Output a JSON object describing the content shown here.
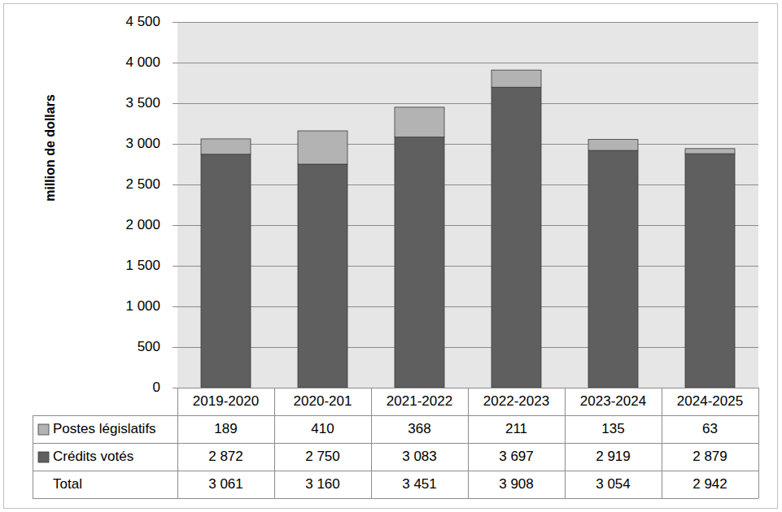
{
  "chart_data": {
    "type": "bar",
    "stacked": true,
    "grid": true,
    "y_label": "million de dollars",
    "categories": [
      "2019-2020",
      "2020-201",
      "2021-2022",
      "2022-2023",
      "2023-2024",
      "2024-2025"
    ],
    "series": [
      {
        "name": "Crédits votés",
        "color": "#5f5f5f",
        "values": [
          2872,
          2750,
          3083,
          3697,
          2919,
          2879
        ],
        "value_labels": [
          "2 872",
          "2 750",
          "3 083",
          "3 697",
          "2 919",
          "2 879"
        ]
      },
      {
        "name": "Postes législatifs",
        "color": "#b3b3b3",
        "values": [
          189,
          410,
          368,
          211,
          135,
          63
        ],
        "value_labels": [
          "189",
          "410",
          "368",
          "211",
          "135",
          "63"
        ]
      }
    ],
    "total": {
      "name": "Total",
      "values": [
        3061,
        3160,
        3451,
        3908,
        3054,
        2942
      ],
      "value_labels": [
        "3 061",
        "3 160",
        "3 451",
        "3 908",
        "3 054",
        "2 942"
      ]
    },
    "ylim": [
      0,
      4500
    ],
    "yticks": [
      0,
      500,
      {
        "value": 1000,
        "label": "1 000"
      },
      {
        "value": 1500,
        "label": "1 500"
      },
      {
        "value": 2000,
        "label": "2 000"
      },
      {
        "value": 2500,
        "label": "2 500"
      },
      {
        "value": 3000,
        "label": "3 000"
      },
      {
        "value": 3500,
        "label": "3 500"
      },
      {
        "value": 4000,
        "label": "4 000"
      },
      {
        "value": 4500,
        "label": "4 500"
      }
    ]
  }
}
